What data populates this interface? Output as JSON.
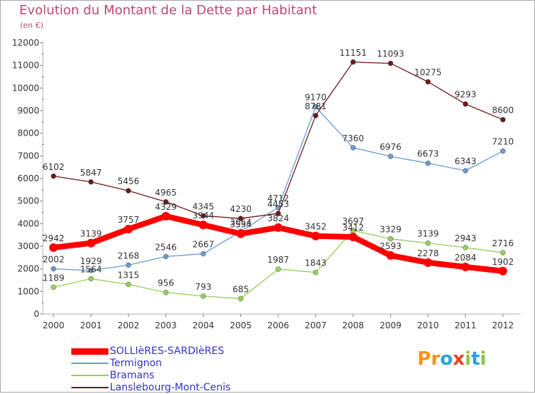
{
  "title": "Evolution du Montant de la Dette par Habitant",
  "subtitle": "(en €)",
  "logo": {
    "letters": [
      "P",
      "r",
      "o",
      "x",
      "i",
      "t",
      "i"
    ],
    "colors": [
      "#f7941d",
      "#f7941d",
      "#2e9fd9",
      "#e8412c",
      "#8dc63f",
      "#2e9fd9",
      "#8dc63f"
    ]
  },
  "chart_data": {
    "type": "line",
    "title": "Evolution du Montant de la Dette par Habitant",
    "ylabel": "(en €)",
    "xlabel": "",
    "ylim": [
      0,
      12000
    ],
    "yticks": [
      0,
      1000,
      2000,
      3000,
      4000,
      5000,
      6000,
      7000,
      8000,
      9000,
      10000,
      11000,
      12000
    ],
    "x": [
      "2000",
      "2001",
      "2002",
      "2003",
      "2004",
      "2005",
      "2006",
      "2007",
      "2008",
      "2009",
      "2010",
      "2011",
      "2012"
    ],
    "grid": "none",
    "legend_position": "bottom-left",
    "series": [
      {
        "name": "SOLLIèRES-SARDIèRES",
        "color": "#ff0000",
        "values": [
          2942,
          3139,
          3757,
          4329,
          3944,
          3554,
          3824,
          3452,
          3412,
          2593,
          2278,
          2084,
          1902
        ]
      },
      {
        "name": "Termignon",
        "color": "#6b9ccf",
        "values": [
          2002,
          1929,
          2168,
          2546,
          2667,
          3654,
          4712,
          9170,
          7360,
          6976,
          6673,
          6343,
          7210
        ]
      },
      {
        "name": "Bramans",
        "color": "#9acd5a",
        "values": [
          1189,
          1564,
          1315,
          956,
          793,
          685,
          1987,
          1843,
          3697,
          3329,
          3139,
          2943,
          2716
        ]
      },
      {
        "name": "Lanslebourg-Mont-Cenis",
        "color": "#6b1a1a",
        "values": [
          6102,
          5847,
          5456,
          4965,
          4345,
          4230,
          4453,
          8781,
          11151,
          11093,
          10275,
          9293,
          8600
        ]
      }
    ]
  }
}
